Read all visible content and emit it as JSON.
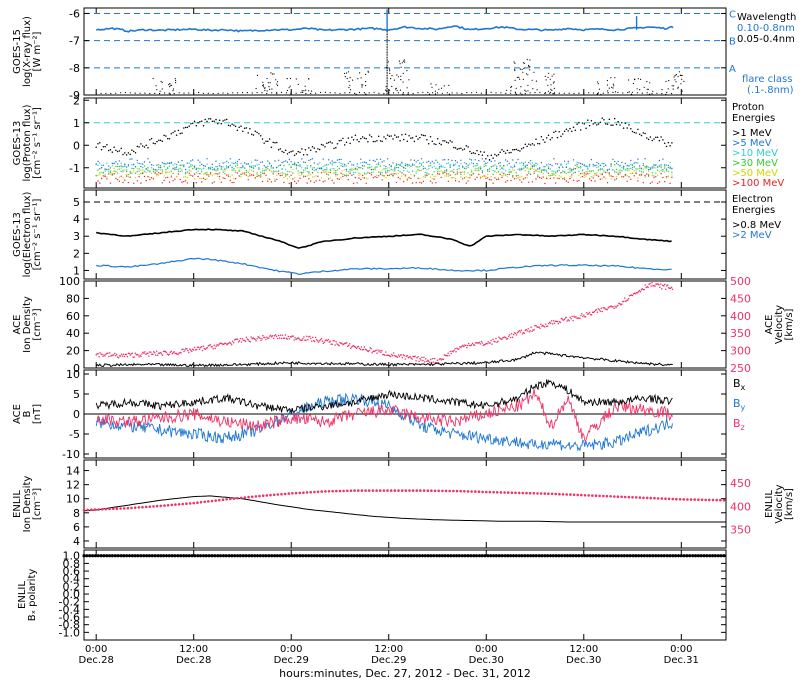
{
  "figure": {
    "xlabel": "hours:minutes, Dec. 27, 2012 - Dec. 31, 2012",
    "xticks": [
      {
        "time": "0:00",
        "day": "Dec.28",
        "h": 0
      },
      {
        "time": "12:00",
        "day": "Dec.28",
        "h": 12
      },
      {
        "time": "0:00",
        "day": "Dec.29",
        "h": 24
      },
      {
        "time": "12:00",
        "day": "Dec.29",
        "h": 36
      },
      {
        "time": "0:00",
        "day": "Dec.30",
        "h": 48
      },
      {
        "time": "12:00",
        "day": "Dec.30",
        "h": 60
      },
      {
        "time": "0:00",
        "day": "Dec.31",
        "h": 72
      }
    ],
    "xlim_hours": [
      -1.5,
      77.5
    ],
    "data_end_hours": 71,
    "colors": {
      "black": "#000000",
      "blue": "#1f77d4",
      "cyan": "#33cccc",
      "pink": "#ee3366",
      "green": "#33cc33",
      "yellow": "#d4d400",
      "orange": "#ff8800",
      "red": "#ee2222",
      "axis": "#000000"
    }
  },
  "chart_data": [
    {
      "id": "xray",
      "type": "line",
      "ylabel": [
        "GOES-15",
        "log(X-ray flux)",
        "[W m⁻²]"
      ],
      "ylim": [
        -9,
        -5.8
      ],
      "yticks": [
        -6,
        -7,
        -8,
        -9
      ],
      "ref_lines": [
        {
          "y": -6,
          "letter": "C"
        },
        {
          "y": -7,
          "letter": "B"
        },
        {
          "y": -8,
          "letter": "A"
        }
      ],
      "legend_title": "Wavelength",
      "legend": [
        {
          "name": "0.10-0.8nm",
          "color": "#1f77d4"
        },
        {
          "name": "0.05-0.4nm",
          "color": "#000000"
        }
      ],
      "legend_note": [
        "flare class",
        "(.1-.8nm)"
      ],
      "series": [
        {
          "name": "0.10-0.8nm",
          "color": "#1f77d4",
          "x": [
            0,
            2,
            4,
            6,
            8,
            10,
            12,
            14,
            16,
            18,
            20,
            22,
            24,
            26,
            28,
            30,
            32,
            34,
            36,
            38,
            40,
            42,
            44,
            46,
            48,
            50,
            52,
            54,
            56,
            58,
            60,
            62,
            64,
            66,
            68,
            70,
            71
          ],
          "values": [
            -6.6,
            -6.55,
            -6.65,
            -6.6,
            -6.62,
            -6.6,
            -6.58,
            -6.62,
            -6.6,
            -6.65,
            -6.62,
            -6.6,
            -6.6,
            -6.55,
            -6.62,
            -6.6,
            -6.58,
            -6.55,
            -6.6,
            -6.5,
            -6.55,
            -6.58,
            -6.45,
            -6.6,
            -6.55,
            -6.5,
            -6.58,
            -6.6,
            -6.62,
            -6.55,
            -6.6,
            -6.58,
            -6.6,
            -6.55,
            -6.5,
            -6.55,
            -6.5
          ]
        }
      ],
      "spikes": [
        {
          "x": 35.8,
          "y": -5.85
        },
        {
          "x": 66.5,
          "y": -6.1
        }
      ]
    },
    {
      "id": "proton",
      "type": "scatter",
      "ylabel": [
        "GOES-13",
        "log(Proton flux)",
        "[cm⁻² s⁻¹ sr⁻¹]"
      ],
      "ylim": [
        -1.9,
        2.1
      ],
      "yticks": [
        2,
        1,
        0,
        -1
      ],
      "ref_lines": [
        {
          "y": 1,
          "color": "#33cccc"
        }
      ],
      "legend_title": [
        "Proton",
        "Energies"
      ],
      "legend": [
        {
          "name": ">1 MeV",
          "color": "#000000",
          "level": null
        },
        {
          "name": ">5 MeV",
          "color": "#1f77d4",
          "level": -0.85
        },
        {
          "name": ">10 MeV",
          "color": "#33cccc",
          "level": -1.0
        },
        {
          "name": ">30 MeV",
          "color": "#33cc33",
          "level": -1.1
        },
        {
          "name": ">50 MeV",
          "color": "#d4d400",
          "level": -1.25
        },
        {
          "name": ">100 MeV",
          "color": "#ee2222",
          "level": -1.45
        }
      ],
      "series": [
        {
          "name": ">1 MeV",
          "color": "#000000",
          "x": [
            0,
            4,
            8,
            12,
            14,
            16,
            20,
            24,
            28,
            32,
            36,
            40,
            44,
            48,
            52,
            56,
            60,
            62,
            64,
            68,
            71
          ],
          "values": [
            0,
            -0.3,
            0.3,
            0.9,
            1.1,
            1.05,
            0.4,
            -0.4,
            -0.1,
            0.3,
            0.35,
            0.3,
            0.05,
            -0.5,
            -0.2,
            0.4,
            0.9,
            1.1,
            1.0,
            0.4,
            0
          ]
        }
      ]
    },
    {
      "id": "electron",
      "type": "line",
      "ylabel": [
        "GOES-13",
        "log(Electron flux)",
        "[cm⁻² s⁻¹ sr⁻¹]"
      ],
      "ylim": [
        0.5,
        5.7
      ],
      "yticks": [
        5,
        4,
        3,
        2,
        1
      ],
      "ref_lines": [
        {
          "y": 5,
          "color": "#000000"
        }
      ],
      "legend_title": [
        "Electron",
        "Energies"
      ],
      "legend": [
        {
          "name": ">0.8 MeV",
          "color": "#000000"
        },
        {
          "name": ">2 MeV",
          "color": "#1f77d4"
        }
      ],
      "series": [
        {
          "name": ">0.8 MeV",
          "color": "#000000",
          "x": [
            0,
            4,
            8,
            12,
            14,
            18,
            22,
            25,
            28,
            32,
            36,
            40,
            44,
            46,
            48,
            52,
            56,
            60,
            64,
            68,
            71
          ],
          "values": [
            3.2,
            3.0,
            3.2,
            3.4,
            3.4,
            3.3,
            2.8,
            2.3,
            2.7,
            2.9,
            3.0,
            3.1,
            2.8,
            2.4,
            3.0,
            3.1,
            3.0,
            3.1,
            3.0,
            2.8,
            2.7
          ]
        },
        {
          "name": ">2 MeV",
          "color": "#1f77d4",
          "x": [
            0,
            4,
            8,
            12,
            14,
            18,
            22,
            25,
            28,
            32,
            36,
            40,
            44,
            48,
            52,
            56,
            60,
            64,
            68,
            71
          ],
          "values": [
            1.3,
            1.2,
            1.4,
            1.7,
            1.65,
            1.4,
            1.0,
            0.8,
            0.95,
            1.1,
            1.1,
            1.15,
            1.0,
            1.0,
            1.2,
            1.3,
            1.3,
            1.25,
            1.1,
            1.05
          ]
        }
      ]
    },
    {
      "id": "ace_density",
      "type": "line",
      "ylabel": [
        "ACE",
        "Ion Density",
        "[cm⁻³]"
      ],
      "ylim": [
        0,
        100
      ],
      "yticks": [
        100,
        80,
        60,
        40,
        20,
        0
      ],
      "ylabel_right": [
        "ACE",
        "Velocity",
        "[km/s]"
      ],
      "ylim_right": [
        250,
        500
      ],
      "yticks_right": [
        500,
        450,
        400,
        350,
        300,
        250
      ],
      "series": [
        {
          "name": "Ion Density",
          "axis": "left",
          "color": "#000000",
          "x": [
            0,
            6,
            12,
            18,
            24,
            30,
            36,
            40,
            44,
            48,
            52,
            54,
            56,
            60,
            64,
            68,
            71
          ],
          "values": [
            3,
            4,
            3,
            4,
            6,
            5,
            4,
            4,
            5,
            6,
            10,
            18,
            16,
            12,
            8,
            5,
            3
          ]
        },
        {
          "name": "Velocity",
          "axis": "right",
          "color": "#ee3366",
          "x": [
            0,
            3,
            6,
            10,
            14,
            18,
            22,
            26,
            30,
            34,
            38,
            42,
            44,
            46,
            48,
            52,
            56,
            60,
            64,
            66,
            68,
            71
          ],
          "values": [
            290,
            285,
            290,
            295,
            310,
            330,
            340,
            335,
            320,
            300,
            280,
            270,
            300,
            320,
            320,
            350,
            380,
            400,
            430,
            460,
            490,
            480
          ]
        }
      ]
    },
    {
      "id": "ace_b",
      "type": "line",
      "ylabel": [
        "ACE",
        "B",
        "[nT]"
      ],
      "ylim": [
        -11,
        11
      ],
      "yticks": [
        10,
        5,
        0,
        -5,
        -10
      ],
      "legend": [
        {
          "name": "Bx",
          "color": "#000000"
        },
        {
          "name": "By",
          "color": "#1f77d4"
        },
        {
          "name": "Bz",
          "color": "#ee3366"
        }
      ],
      "series": [
        {
          "name": "Bx",
          "color": "#000000",
          "x": [
            0,
            4,
            8,
            12,
            16,
            20,
            24,
            28,
            32,
            36,
            40,
            44,
            48,
            52,
            54,
            56,
            58,
            60,
            64,
            68,
            71
          ],
          "values": [
            2,
            3,
            2,
            3,
            4,
            2,
            1,
            2,
            3,
            5,
            4,
            3,
            2,
            4,
            7,
            8,
            6,
            3,
            3,
            4,
            3
          ]
        },
        {
          "name": "By",
          "color": "#1f77d4",
          "x": [
            0,
            4,
            8,
            12,
            16,
            20,
            24,
            28,
            32,
            36,
            40,
            44,
            48,
            52,
            54,
            56,
            58,
            60,
            64,
            68,
            71
          ],
          "values": [
            -2,
            -3,
            -4,
            -5,
            -6,
            -4,
            0,
            3,
            4,
            2,
            -3,
            -5,
            -6,
            -7,
            -8,
            -7,
            -8,
            -8,
            -7,
            -4,
            -2
          ]
        },
        {
          "name": "Bz",
          "color": "#ee3366",
          "x": [
            0,
            4,
            8,
            12,
            16,
            20,
            24,
            28,
            32,
            36,
            40,
            44,
            48,
            52,
            54,
            56,
            58,
            60,
            64,
            68,
            71
          ],
          "values": [
            -1,
            -2,
            -1,
            0,
            -2,
            -3,
            -1,
            -2,
            0,
            1,
            -1,
            -2,
            0,
            2,
            5,
            -3,
            4,
            -6,
            2,
            1,
            0
          ]
        }
      ]
    },
    {
      "id": "enlil_density",
      "type": "line",
      "ylabel": [
        "ENLIL",
        "Ion Density",
        "[cm⁻³]"
      ],
      "ylim": [
        3,
        15.5
      ],
      "yticks": [
        14,
        12,
        10,
        8,
        6,
        4
      ],
      "ylabel_right": [
        "ENLIL",
        "Velocity",
        "[km/s]"
      ],
      "ylim_right": [
        310,
        500
      ],
      "yticks_right": [
        450,
        400,
        350
      ],
      "series": [
        {
          "name": "Ion Density",
          "axis": "left",
          "color": "#000000",
          "x": [
            -1.5,
            0,
            4,
            8,
            12,
            14,
            18,
            22,
            26,
            30,
            34,
            38,
            42,
            46,
            50,
            54,
            58,
            62,
            66,
            70,
            77.5
          ],
          "values": [
            8.3,
            8.4,
            9.1,
            9.8,
            10.3,
            10.4,
            10.0,
            9.2,
            8.5,
            8.0,
            7.5,
            7.2,
            7.0,
            6.9,
            6.8,
            6.8,
            6.7,
            6.7,
            6.7,
            6.7,
            6.7
          ]
        },
        {
          "name": "Velocity",
          "axis": "right",
          "color": "#ee3366",
          "x": [
            -1.5,
            0,
            4,
            8,
            12,
            16,
            20,
            24,
            28,
            32,
            36,
            40,
            44,
            48,
            52,
            56,
            60,
            64,
            68,
            72,
            77.5
          ],
          "values": [
            392,
            393,
            396,
            401,
            407,
            415,
            422,
            428,
            432,
            434,
            434,
            434,
            433,
            431,
            429,
            427,
            424,
            421,
            418,
            415,
            413
          ]
        }
      ]
    },
    {
      "id": "enlil_polarity",
      "type": "scatter",
      "ylabel": [
        "ENLIL",
        "Bₓ polarity"
      ],
      "ylim": [
        -1.2,
        1.15
      ],
      "yticks": [
        1.0,
        0.8,
        0.6,
        0.4,
        0.2,
        0.0,
        -0.2,
        -0.4,
        -0.6,
        -0.8,
        -1.0
      ],
      "ytick_labels": [
        "1.0",
        "0.8",
        "0.6",
        "0.4",
        "0.2",
        "0.0",
        "-0.2",
        "-0.4",
        "-0.6",
        "-0.8",
        "-1.0"
      ],
      "series": [
        {
          "name": "Bx polarity",
          "color": "#000000",
          "x": [
            -1.5,
            77.5
          ],
          "values": [
            1.0,
            1.0
          ]
        }
      ]
    }
  ]
}
